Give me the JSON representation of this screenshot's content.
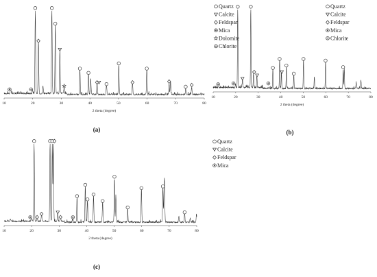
{
  "chart_data": [
    {
      "type": "line",
      "panel_label": "(a)",
      "xlabel": "2 theta (degree)",
      "xlim": [
        10,
        80
      ],
      "xticks": [
        10,
        20,
        30,
        40,
        50,
        60,
        70,
        80
      ],
      "legend": [
        "Quartz",
        "Calcite",
        "Feldspar",
        "Mica",
        "Dolomite",
        "Chlorite"
      ],
      "legend_markers": [
        "circle",
        "triangle",
        "diamond",
        "circle-dot",
        "star",
        "circle-grid"
      ],
      "peaks": [
        {
          "x": 12.3,
          "y": 0.06
        },
        {
          "x": 19.9,
          "y": 0.05
        },
        {
          "x": 20.9,
          "y": 1.0
        },
        {
          "x": 22.0,
          "y": 0.62
        },
        {
          "x": 23.6,
          "y": 0.09
        },
        {
          "x": 26.7,
          "y": 1.0
        },
        {
          "x": 27.9,
          "y": 0.82
        },
        {
          "x": 29.5,
          "y": 0.52
        },
        {
          "x": 31.0,
          "y": 0.07
        },
        {
          "x": 36.5,
          "y": 0.3
        },
        {
          "x": 39.5,
          "y": 0.25
        },
        {
          "x": 40.3,
          "y": 0.18
        },
        {
          "x": 42.5,
          "y": 0.14
        },
        {
          "x": 45.8,
          "y": 0.12
        },
        {
          "x": 50.1,
          "y": 0.36
        },
        {
          "x": 54.9,
          "y": 0.14
        },
        {
          "x": 59.9,
          "y": 0.3
        },
        {
          "x": 67.7,
          "y": 0.13
        },
        {
          "x": 68.2,
          "y": 0.15
        },
        {
          "x": 73.5,
          "y": 0.07
        },
        {
          "x": 75.6,
          "y": 0.09
        }
      ],
      "markers": [
        {
          "x": 11.9,
          "y": 0.06,
          "mineral": "Mica"
        },
        {
          "x": 19.4,
          "y": 0.06,
          "mineral": "Chlorite"
        },
        {
          "x": 20.9,
          "y": 1.0,
          "mineral": "Quartz"
        },
        {
          "x": 22.0,
          "y": 0.62,
          "mineral": "Feldspar"
        },
        {
          "x": 26.7,
          "y": 1.0,
          "mineral": "Quartz"
        },
        {
          "x": 27.9,
          "y": 0.82,
          "mineral": "Quartz"
        },
        {
          "x": 29.5,
          "y": 0.52,
          "mineral": "Calcite"
        },
        {
          "x": 31.0,
          "y": 0.1,
          "mineral": "Dolomite"
        },
        {
          "x": 36.5,
          "y": 0.3,
          "mineral": "Quartz"
        },
        {
          "x": 39.5,
          "y": 0.25,
          "mineral": "Quartz"
        },
        {
          "x": 42.5,
          "y": 0.14,
          "mineral": "Feldspar"
        },
        {
          "x": 43.2,
          "y": 0.14,
          "mineral": "Calcite"
        },
        {
          "x": 45.8,
          "y": 0.12,
          "mineral": "Quartz"
        },
        {
          "x": 50.1,
          "y": 0.36,
          "mineral": "Quartz"
        },
        {
          "x": 54.9,
          "y": 0.14,
          "mineral": "Feldspar"
        },
        {
          "x": 59.9,
          "y": 0.3,
          "mineral": "Quartz"
        },
        {
          "x": 67.7,
          "y": 0.15,
          "mineral": "Feldspar"
        },
        {
          "x": 73.5,
          "y": 0.09,
          "mineral": "Quartz"
        },
        {
          "x": 75.6,
          "y": 0.11,
          "mineral": "Feldspar"
        }
      ]
    },
    {
      "type": "line",
      "panel_label": "(b)",
      "xlabel": "2 theta (degree)",
      "xlim": [
        10,
        80
      ],
      "xticks": [
        10,
        20,
        30,
        40,
        50,
        60,
        70,
        80
      ],
      "legend": [
        "Quartz",
        "Calcite",
        "Feldspar",
        "Mica",
        "Chlorite"
      ],
      "legend_markers": [
        "circle",
        "triangle",
        "diamond",
        "circle-dot",
        "circle-grid"
      ],
      "peaks": [
        {
          "x": 12.3,
          "y": 0.04
        },
        {
          "x": 19.9,
          "y": 0.05
        },
        {
          "x": 20.9,
          "y": 1.0
        },
        {
          "x": 23.0,
          "y": 0.12
        },
        {
          "x": 26.7,
          "y": 1.0
        },
        {
          "x": 27.9,
          "y": 0.18
        },
        {
          "x": 29.4,
          "y": 0.14
        },
        {
          "x": 36.5,
          "y": 0.25
        },
        {
          "x": 39.5,
          "y": 0.36
        },
        {
          "x": 40.3,
          "y": 0.2
        },
        {
          "x": 42.5,
          "y": 0.28
        },
        {
          "x": 45.8,
          "y": 0.18
        },
        {
          "x": 50.1,
          "y": 0.36
        },
        {
          "x": 54.9,
          "y": 0.14
        },
        {
          "x": 59.9,
          "y": 0.34
        },
        {
          "x": 67.7,
          "y": 0.22
        },
        {
          "x": 68.2,
          "y": 0.26
        },
        {
          "x": 73.5,
          "y": 0.08
        },
        {
          "x": 75.6,
          "y": 0.1
        }
      ],
      "markers": [
        {
          "x": 12.2,
          "y": 0.05,
          "mineral": "Mica"
        },
        {
          "x": 19.0,
          "y": 0.06,
          "mineral": "Chlorite"
        },
        {
          "x": 20.9,
          "y": 1.0,
          "mineral": "Quartz"
        },
        {
          "x": 23.0,
          "y": 0.12,
          "mineral": "Calcite"
        },
        {
          "x": 26.7,
          "y": 1.0,
          "mineral": "Quartz"
        },
        {
          "x": 28.2,
          "y": 0.2,
          "mineral": "Feldspar"
        },
        {
          "x": 29.5,
          "y": 0.16,
          "mineral": "Calcite"
        },
        {
          "x": 34.5,
          "y": 0.06,
          "mineral": "Chlorite"
        },
        {
          "x": 36.5,
          "y": 0.25,
          "mineral": "Quartz"
        },
        {
          "x": 39.5,
          "y": 0.36,
          "mineral": "Quartz"
        },
        {
          "x": 40.5,
          "y": 0.2,
          "mineral": "Calcite"
        },
        {
          "x": 42.5,
          "y": 0.28,
          "mineral": "Quartz"
        },
        {
          "x": 45.8,
          "y": 0.18,
          "mineral": "Quartz"
        },
        {
          "x": 50.1,
          "y": 0.36,
          "mineral": "Quartz"
        },
        {
          "x": 59.9,
          "y": 0.34,
          "mineral": "Quartz"
        },
        {
          "x": 67.7,
          "y": 0.26,
          "mineral": "Quartz"
        }
      ]
    },
    {
      "type": "line",
      "panel_label": "(c)",
      "xlabel": "2 theta (degree)",
      "xlim": [
        10,
        80
      ],
      "xticks": [
        10,
        20,
        30,
        40,
        50,
        60,
        70,
        80
      ],
      "legend": [
        "Quartz",
        "Calcite",
        "Feldspar",
        "Mica"
      ],
      "legend_markers": [
        "circle",
        "triangle",
        "diamond",
        "circle-dot"
      ],
      "peaks": [
        {
          "x": 12.3,
          "y": 0.03
        },
        {
          "x": 19.9,
          "y": 0.05
        },
        {
          "x": 20.9,
          "y": 1.0
        },
        {
          "x": 22.0,
          "y": 0.06
        },
        {
          "x": 23.6,
          "y": 0.1
        },
        {
          "x": 26.7,
          "y": 1.0
        },
        {
          "x": 27.5,
          "y": 0.97
        },
        {
          "x": 27.9,
          "y": 1.0
        },
        {
          "x": 29.5,
          "y": 0.12
        },
        {
          "x": 30.5,
          "y": 0.06
        },
        {
          "x": 35.0,
          "y": 0.05
        },
        {
          "x": 36.5,
          "y": 0.32
        },
        {
          "x": 39.5,
          "y": 0.46
        },
        {
          "x": 40.3,
          "y": 0.28
        },
        {
          "x": 42.5,
          "y": 0.34
        },
        {
          "x": 45.8,
          "y": 0.26
        },
        {
          "x": 50.1,
          "y": 0.56
        },
        {
          "x": 50.6,
          "y": 0.34
        },
        {
          "x": 54.9,
          "y": 0.18
        },
        {
          "x": 59.9,
          "y": 0.42
        },
        {
          "x": 67.7,
          "y": 0.44
        },
        {
          "x": 68.1,
          "y": 0.32
        },
        {
          "x": 68.3,
          "y": 0.46
        },
        {
          "x": 73.5,
          "y": 0.07
        },
        {
          "x": 75.6,
          "y": 0.12
        },
        {
          "x": 77.6,
          "y": 0.05
        },
        {
          "x": 79.9,
          "y": 0.1
        }
      ],
      "markers": [
        {
          "x": 19.5,
          "y": 0.06,
          "mineral": "Mica"
        },
        {
          "x": 20.9,
          "y": 1.0,
          "mineral": "Quartz"
        },
        {
          "x": 22.0,
          "y": 0.06,
          "mineral": "Feldspar"
        },
        {
          "x": 23.6,
          "y": 0.1,
          "mineral": "Feldspar"
        },
        {
          "x": 26.7,
          "y": 1.0,
          "mineral": "Quartz"
        },
        {
          "x": 27.5,
          "y": 1.0,
          "mineral": "Quartz"
        },
        {
          "x": 28.3,
          "y": 1.0,
          "mineral": "Feldspar"
        },
        {
          "x": 29.5,
          "y": 0.12,
          "mineral": "Calcite"
        },
        {
          "x": 30.5,
          "y": 0.06,
          "mineral": "Feldspar"
        },
        {
          "x": 35.0,
          "y": 0.06,
          "mineral": "Mica"
        },
        {
          "x": 36.5,
          "y": 0.32,
          "mineral": "Quartz"
        },
        {
          "x": 39.5,
          "y": 0.46,
          "mineral": "Quartz"
        },
        {
          "x": 40.3,
          "y": 0.28,
          "mineral": "Quartz"
        },
        {
          "x": 42.5,
          "y": 0.34,
          "mineral": "Quartz"
        },
        {
          "x": 45.8,
          "y": 0.26,
          "mineral": "Quartz"
        },
        {
          "x": 50.1,
          "y": 0.56,
          "mineral": "Quartz"
        },
        {
          "x": 54.9,
          "y": 0.18,
          "mineral": "Quartz"
        },
        {
          "x": 59.9,
          "y": 0.42,
          "mineral": "Quartz"
        },
        {
          "x": 67.7,
          "y": 0.44,
          "mineral": "Quartz"
        },
        {
          "x": 75.6,
          "y": 0.12,
          "mineral": "Quartz"
        }
      ]
    }
  ]
}
